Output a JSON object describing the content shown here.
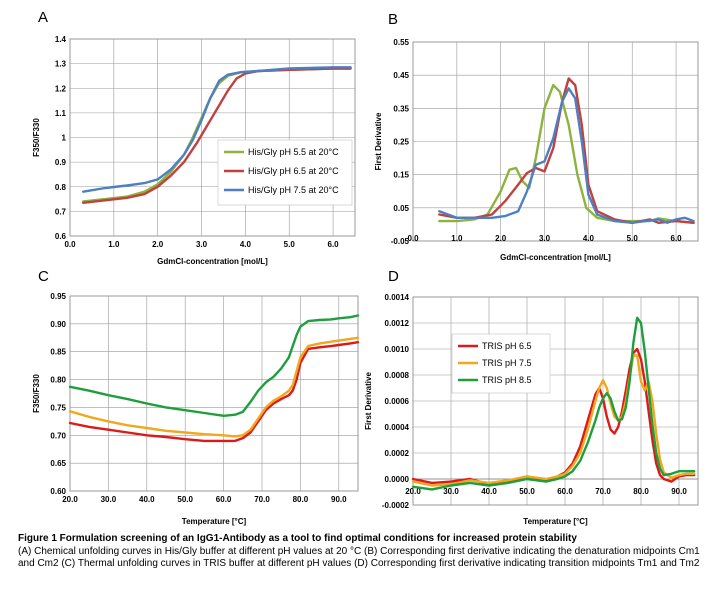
{
  "figure": {
    "caption_title": "Figure 1 Formulation screening of an IgG1-Antibody as a tool to find optimal conditions for increased protein stability",
    "caption_body": "(A) Chemical unfolding curves in His/Gly buffer at different pH values at 20 °C (B) Corresponding first derivative indicating the denaturation midpoints Cm1 and Cm2 (C) Thermal unfolding curves in TRIS buffer at different pH values (D) Corresponding first derivative indicating transition midpoints Tm1 and Tm2"
  },
  "chart_data": [
    {
      "id": "A",
      "type": "line",
      "panel_letter": "A",
      "title": "",
      "xlabel": "GdmCl-concentration [mol/L]",
      "ylabel": "F350/F330",
      "xlim": [
        0,
        6.5
      ],
      "ylim": [
        0.6,
        1.4
      ],
      "xticks": [
        "0.0",
        "1.0",
        "2.0",
        "3.0",
        "4.0",
        "5.0",
        "6.0"
      ],
      "xtick_values": [
        0,
        1,
        2,
        3,
        4,
        5,
        6
      ],
      "yticks": [
        "0.6",
        "0.7",
        "0.8",
        "0.9",
        "1",
        "1.1",
        "1.2",
        "1.3",
        "1.4"
      ],
      "ytick_values": [
        0.6,
        0.7,
        0.8,
        0.9,
        1.0,
        1.1,
        1.2,
        1.3,
        1.4
      ],
      "grid": true,
      "legend_position": "center-right",
      "series": [
        {
          "name": "His/Gly pH 5.5 at 20°C",
          "color": "#8db33c",
          "x": [
            0.3,
            0.8,
            1.3,
            1.7,
            2.0,
            2.3,
            2.6,
            2.8,
            3.0,
            3.2,
            3.4,
            3.6,
            3.9,
            4.3,
            5.0,
            6.0,
            6.4
          ],
          "y": [
            0.74,
            0.75,
            0.76,
            0.78,
            0.81,
            0.86,
            0.93,
            1.0,
            1.08,
            1.16,
            1.22,
            1.25,
            1.265,
            1.27,
            1.275,
            1.28,
            1.28
          ]
        },
        {
          "name": "His/Gly pH 6.5 at 20°C",
          "color": "#c0413d",
          "x": [
            0.3,
            0.8,
            1.3,
            1.7,
            2.0,
            2.3,
            2.6,
            2.9,
            3.2,
            3.4,
            3.6,
            3.8,
            4.0,
            4.3,
            5.0,
            6.0,
            6.4
          ],
          "y": [
            0.735,
            0.745,
            0.755,
            0.77,
            0.8,
            0.845,
            0.9,
            0.98,
            1.07,
            1.13,
            1.19,
            1.24,
            1.26,
            1.27,
            1.275,
            1.28,
            1.28
          ]
        },
        {
          "name": "His/Gly pH 7.5 at 20°C",
          "color": "#4e7fc2",
          "x": [
            0.3,
            0.8,
            1.3,
            1.7,
            2.0,
            2.3,
            2.6,
            2.8,
            3.0,
            3.2,
            3.4,
            3.6,
            3.9,
            4.3,
            5.0,
            6.0,
            6.4
          ],
          "y": [
            0.78,
            0.795,
            0.805,
            0.815,
            0.83,
            0.87,
            0.93,
            0.99,
            1.07,
            1.16,
            1.23,
            1.255,
            1.265,
            1.27,
            1.28,
            1.285,
            1.285
          ]
        }
      ]
    },
    {
      "id": "B",
      "type": "line",
      "panel_letter": "B",
      "title": "",
      "xlabel": "GdmCl-concentration [mol/L]",
      "ylabel": "First Derivative",
      "xlim": [
        0,
        6.5
      ],
      "ylim": [
        -0.05,
        0.55
      ],
      "xticks": [
        "0.0",
        "1.0",
        "2.0",
        "3.0",
        "4.0",
        "5.0",
        "6.0"
      ],
      "xtick_values": [
        0,
        1,
        2,
        3,
        4,
        5,
        6
      ],
      "yticks": [
        "-0.05",
        "0.05",
        "0.15",
        "0.25",
        "0.35",
        "0.45",
        "0.55"
      ],
      "ytick_values": [
        -0.05,
        0.05,
        0.15,
        0.25,
        0.35,
        0.45,
        0.55
      ],
      "grid": true,
      "series": [
        {
          "name": "",
          "color": "#8db33c",
          "x": [
            0.6,
            1.0,
            1.4,
            1.7,
            2.0,
            2.2,
            2.35,
            2.5,
            2.65,
            2.8,
            3.0,
            3.2,
            3.35,
            3.55,
            3.75,
            3.95,
            4.2,
            4.6,
            5.0,
            5.4,
            5.6,
            6.0,
            6.4
          ],
          "y": [
            0.01,
            0.01,
            0.015,
            0.03,
            0.1,
            0.165,
            0.17,
            0.13,
            0.11,
            0.2,
            0.35,
            0.42,
            0.4,
            0.3,
            0.15,
            0.05,
            0.02,
            0.01,
            0.01,
            0.01,
            0.018,
            0.01,
            0.005
          ]
        },
        {
          "name": "",
          "color": "#c0413d",
          "x": [
            0.6,
            1.0,
            1.4,
            1.8,
            2.1,
            2.4,
            2.6,
            2.8,
            3.0,
            3.2,
            3.4,
            3.55,
            3.7,
            3.85,
            4.0,
            4.2,
            4.6,
            5.0,
            5.4,
            5.6,
            6.0,
            6.4
          ],
          "y": [
            0.03,
            0.02,
            0.02,
            0.03,
            0.07,
            0.12,
            0.155,
            0.17,
            0.16,
            0.23,
            0.37,
            0.44,
            0.42,
            0.3,
            0.12,
            0.04,
            0.015,
            0.005,
            0.015,
            0.005,
            0.01,
            0.005
          ]
        },
        {
          "name": "",
          "color": "#4e7fc2",
          "x": [
            0.6,
            1.0,
            1.4,
            1.8,
            2.1,
            2.4,
            2.6,
            2.8,
            3.0,
            3.2,
            3.4,
            3.55,
            3.7,
            3.85,
            4.0,
            4.2,
            4.6,
            5.0,
            5.3,
            5.6,
            5.8,
            6.0,
            6.2,
            6.4
          ],
          "y": [
            0.04,
            0.02,
            0.02,
            0.02,
            0.025,
            0.04,
            0.1,
            0.18,
            0.19,
            0.26,
            0.37,
            0.41,
            0.38,
            0.25,
            0.09,
            0.03,
            0.01,
            0.005,
            0.01,
            0.015,
            0.005,
            0.015,
            0.02,
            0.01
          ]
        }
      ]
    },
    {
      "id": "C",
      "type": "line",
      "panel_letter": "C",
      "title": "",
      "xlabel": "Temperature [°C]",
      "ylabel": "F350/F330",
      "xlim": [
        20,
        95
      ],
      "ylim": [
        0.6,
        0.95
      ],
      "xticks": [
        "20.0",
        "30.0",
        "40.0",
        "50.0",
        "60.0",
        "70.0",
        "80.0",
        "90.0"
      ],
      "xtick_values": [
        20,
        30,
        40,
        50,
        60,
        70,
        80,
        90
      ],
      "yticks": [
        "0.60",
        "0.65",
        "0.70",
        "0.75",
        "0.80",
        "0.85",
        "0.90",
        "0.95"
      ],
      "ytick_values": [
        0.6,
        0.65,
        0.7,
        0.75,
        0.8,
        0.85,
        0.9,
        0.95
      ],
      "grid": true,
      "series": [
        {
          "name": "",
          "color": "#dd1a1a",
          "x": [
            20,
            25,
            30,
            35,
            40,
            45,
            50,
            55,
            60,
            63,
            65,
            67,
            69,
            71,
            73,
            75,
            77,
            78,
            79,
            80,
            82,
            85,
            88,
            90,
            93,
            95
          ],
          "y": [
            0.722,
            0.715,
            0.71,
            0.705,
            0.7,
            0.697,
            0.693,
            0.69,
            0.69,
            0.69,
            0.695,
            0.705,
            0.725,
            0.745,
            0.757,
            0.765,
            0.772,
            0.78,
            0.8,
            0.83,
            0.855,
            0.858,
            0.86,
            0.862,
            0.865,
            0.867
          ]
        },
        {
          "name": "",
          "color": "#f0a81f",
          "x": [
            20,
            25,
            30,
            35,
            40,
            45,
            50,
            55,
            60,
            63,
            65,
            67,
            69,
            71,
            73,
            75,
            77,
            78,
            79,
            80,
            82,
            85,
            88,
            90,
            93,
            95
          ],
          "y": [
            0.743,
            0.733,
            0.725,
            0.718,
            0.713,
            0.708,
            0.705,
            0.702,
            0.7,
            0.698,
            0.7,
            0.71,
            0.73,
            0.75,
            0.762,
            0.77,
            0.78,
            0.79,
            0.815,
            0.84,
            0.86,
            0.865,
            0.868,
            0.87,
            0.873,
            0.875
          ]
        },
        {
          "name": "",
          "color": "#1f9e3d",
          "x": [
            20,
            25,
            30,
            35,
            40,
            45,
            50,
            55,
            60,
            63,
            65,
            67,
            69,
            71,
            73,
            75,
            77,
            78,
            79,
            80,
            82,
            85,
            88,
            90,
            93,
            95
          ],
          "y": [
            0.787,
            0.78,
            0.772,
            0.765,
            0.757,
            0.75,
            0.745,
            0.74,
            0.735,
            0.737,
            0.742,
            0.76,
            0.78,
            0.795,
            0.805,
            0.82,
            0.84,
            0.86,
            0.88,
            0.895,
            0.905,
            0.907,
            0.908,
            0.91,
            0.912,
            0.915
          ]
        }
      ]
    },
    {
      "id": "D",
      "type": "line",
      "panel_letter": "D",
      "title": "",
      "xlabel": "Temperature [°C]",
      "ylabel": "First Derivative",
      "xlim": [
        20,
        95
      ],
      "ylim": [
        -0.0002,
        0.0014
      ],
      "xticks": [
        "20.0",
        "30.0",
        "40.0",
        "50.0",
        "60.0",
        "70.0",
        "80.0",
        "90.0"
      ],
      "xtick_values": [
        20,
        30,
        40,
        50,
        60,
        70,
        80,
        90
      ],
      "yticks": [
        "-0.0002",
        "0.0000",
        "0.0002",
        "0.0004",
        "0.0006",
        "0.0008",
        "0.0010",
        "0.0012",
        "0.0014"
      ],
      "ytick_values": [
        -0.0002,
        0,
        0.0002,
        0.0004,
        0.0006,
        0.0008,
        0.001,
        0.0012,
        0.0014
      ],
      "grid": true,
      "legend_position": "top-left",
      "series": [
        {
          "name": "TRIS pH 6.5",
          "color": "#dd1a1a",
          "x": [
            20,
            25,
            30,
            35,
            40,
            45,
            50,
            55,
            58,
            60,
            62,
            64,
            66,
            68,
            69,
            70,
            71,
            72,
            73,
            74,
            75,
            76,
            77,
            78,
            79,
            80,
            81,
            82,
            83,
            84,
            85,
            86,
            88,
            90,
            92,
            94
          ],
          "y": [
            0,
            -3e-05,
            -2e-05,
            0,
            -4e-05,
            -2e-05,
            2e-05,
            -1e-05,
            2e-05,
            5e-05,
            0.00012,
            0.00025,
            0.00045,
            0.00065,
            0.0007,
            0.00062,
            0.00048,
            0.00038,
            0.00035,
            0.0004,
            0.00052,
            0.00068,
            0.00085,
            0.00097,
            0.001,
            0.00092,
            0.00075,
            0.00052,
            0.0003,
            0.00012,
            3e-05,
            0,
            -2e-05,
            2e-05,
            3e-05,
            3e-05
          ]
        },
        {
          "name": "TRIS pH 7.5",
          "color": "#f0a81f",
          "x": [
            20,
            25,
            30,
            35,
            40,
            45,
            50,
            55,
            58,
            60,
            62,
            64,
            66,
            68,
            69,
            70,
            71,
            72,
            73,
            74,
            75,
            76,
            77,
            78,
            79,
            80,
            81,
            82,
            83,
            84,
            85,
            86,
            88,
            90,
            92,
            94
          ],
          "y": [
            -2e-05,
            -5e-05,
            -4e-05,
            -1e-05,
            -3e-05,
            -1e-05,
            2e-05,
            0,
            2e-05,
            4e-05,
            0.0001,
            0.0002,
            0.00038,
            0.0006,
            0.0007,
            0.00076,
            0.0007,
            0.00058,
            0.00048,
            0.00045,
            0.00048,
            0.0006,
            0.00078,
            0.00095,
            0.00095,
            0.00075,
            0.00068,
            0.00075,
            0.0006,
            0.00035,
            0.00015,
            5e-05,
            1e-05,
            3e-05,
            4e-05,
            4e-05
          ]
        },
        {
          "name": "TRIS pH 8.5",
          "color": "#1f9e3d",
          "x": [
            20,
            25,
            30,
            35,
            40,
            45,
            50,
            55,
            58,
            60,
            62,
            64,
            66,
            68,
            69,
            70,
            71,
            72,
            73,
            74,
            75,
            76,
            77,
            78,
            79,
            80,
            81,
            82,
            83,
            84,
            85,
            86,
            88,
            90,
            92,
            94
          ],
          "y": [
            -6e-05,
            -8e-05,
            -5e-05,
            -3e-05,
            -5e-05,
            -3e-05,
            0,
            -2e-05,
            0,
            2e-05,
            6e-05,
            0.00014,
            0.00028,
            0.00045,
            0.00055,
            0.00062,
            0.00066,
            0.00062,
            0.00052,
            0.00045,
            0.00046,
            0.00055,
            0.00075,
            0.00105,
            0.00124,
            0.0012,
            0.00098,
            0.0007,
            0.00042,
            0.0002,
            8e-05,
            3e-05,
            4e-05,
            6e-05,
            6e-05,
            6e-05
          ]
        }
      ]
    }
  ]
}
